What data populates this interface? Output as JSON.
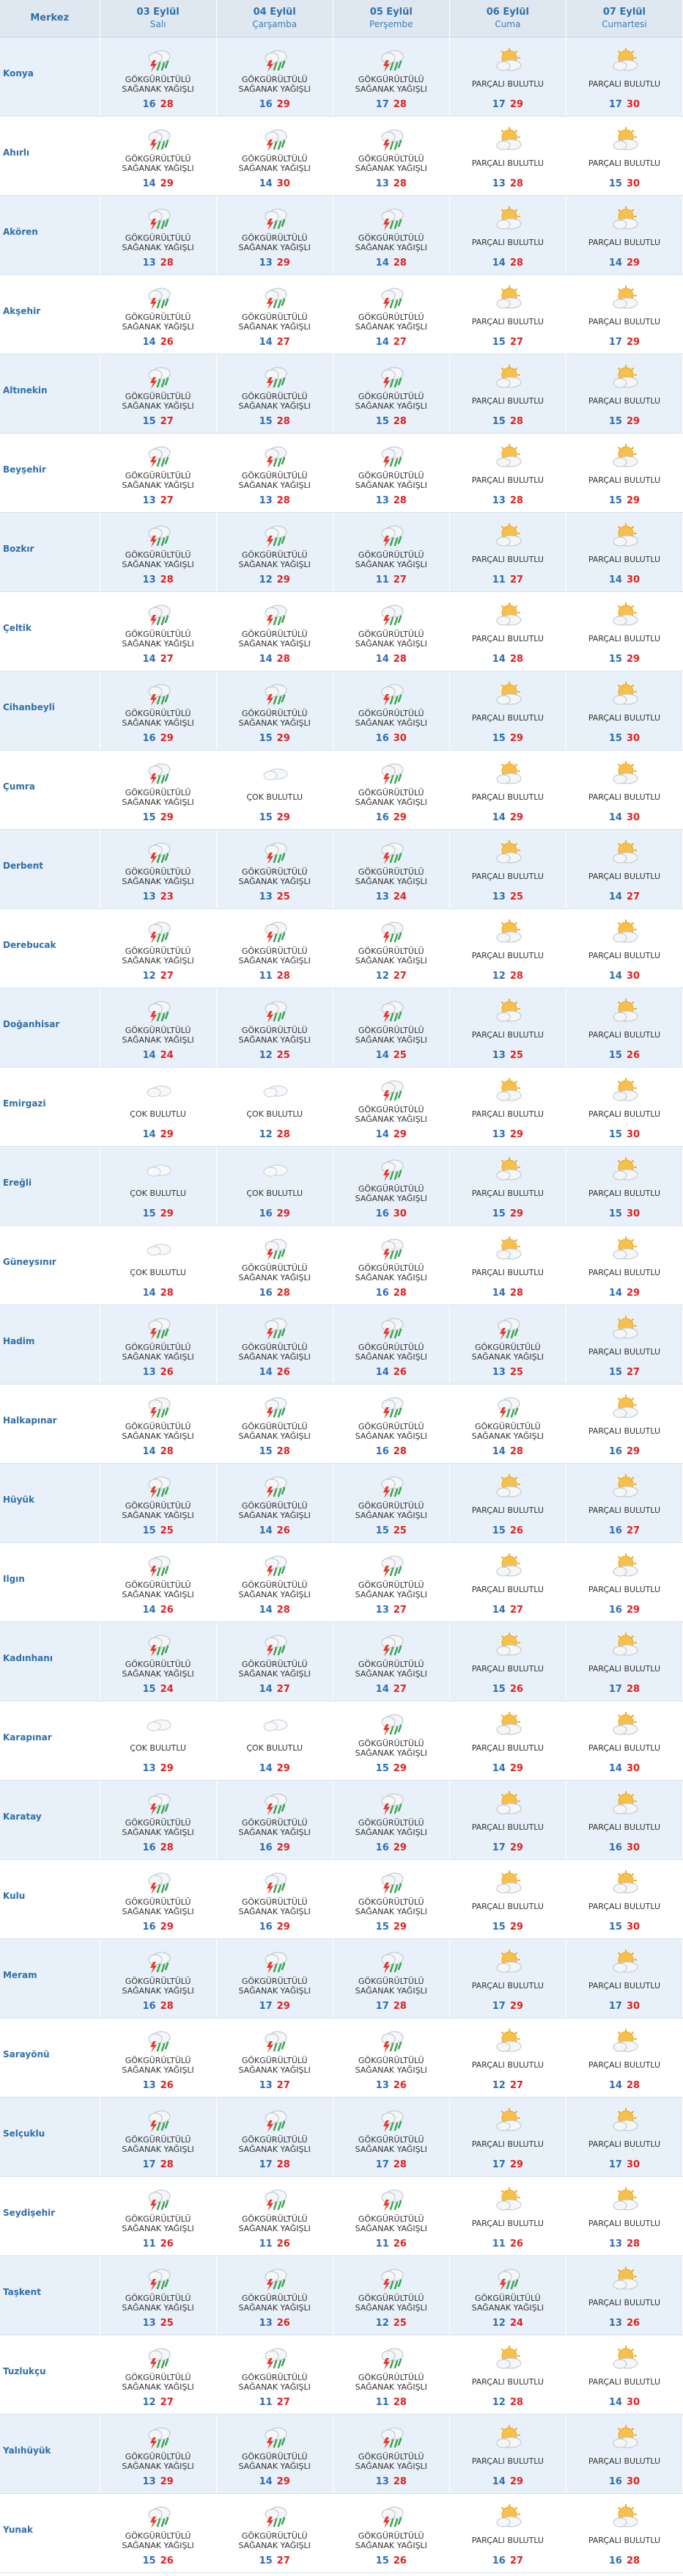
{
  "header": {
    "center_label": "Merkez",
    "days": [
      {
        "date": "03 Eylül",
        "name": "Salı"
      },
      {
        "date": "04 Eylül",
        "name": "Çarşamba"
      },
      {
        "date": "05 Eylül",
        "name": "Perşembe"
      },
      {
        "date": "06 Eylül",
        "name": "Cuma"
      },
      {
        "date": "07 Eylül",
        "name": "Cumartesi"
      }
    ]
  },
  "conditions": {
    "GSY": {
      "text": "GÖKGÜRÜLTÜLÜ\nSAĞANAK YAĞIŞLI",
      "icon": "thunderstorm-rain-icon"
    },
    "PB": {
      "text": "PARÇALI BULUTLU",
      "icon": "partly-cloudy-icon"
    },
    "CB": {
      "text": "ÇOK BULUTLU",
      "icon": "cloudy-icon"
    }
  },
  "colors": {
    "header_bg": "#dfe8f1",
    "row_alt_bg": "#e8f1f9",
    "city_text": "#2f6fa8",
    "min_temp": "#2e6db4",
    "max_temp": "#e02020"
  },
  "rows": [
    {
      "city": "Konya",
      "days": [
        [
          "GSY",
          16,
          28
        ],
        [
          "GSY",
          16,
          29
        ],
        [
          "GSY",
          17,
          28
        ],
        [
          "PB",
          17,
          29
        ],
        [
          "PB",
          17,
          30
        ]
      ]
    },
    {
      "city": "Ahırlı",
      "days": [
        [
          "GSY",
          14,
          29
        ],
        [
          "GSY",
          14,
          30
        ],
        [
          "GSY",
          13,
          28
        ],
        [
          "PB",
          13,
          28
        ],
        [
          "PB",
          15,
          30
        ]
      ]
    },
    {
      "city": "Akören",
      "days": [
        [
          "GSY",
          13,
          28
        ],
        [
          "GSY",
          13,
          29
        ],
        [
          "GSY",
          14,
          28
        ],
        [
          "PB",
          14,
          28
        ],
        [
          "PB",
          14,
          29
        ]
      ]
    },
    {
      "city": "Akşehir",
      "days": [
        [
          "GSY",
          14,
          26
        ],
        [
          "GSY",
          14,
          27
        ],
        [
          "GSY",
          14,
          27
        ],
        [
          "PB",
          15,
          27
        ],
        [
          "PB",
          17,
          29
        ]
      ]
    },
    {
      "city": "Altınekin",
      "days": [
        [
          "GSY",
          15,
          27
        ],
        [
          "GSY",
          15,
          28
        ],
        [
          "GSY",
          15,
          28
        ],
        [
          "PB",
          15,
          28
        ],
        [
          "PB",
          15,
          29
        ]
      ]
    },
    {
      "city": "Beyşehir",
      "days": [
        [
          "GSY",
          13,
          27
        ],
        [
          "GSY",
          13,
          28
        ],
        [
          "GSY",
          13,
          28
        ],
        [
          "PB",
          13,
          28
        ],
        [
          "PB",
          15,
          29
        ]
      ]
    },
    {
      "city": "Bozkır",
      "days": [
        [
          "GSY",
          13,
          28
        ],
        [
          "GSY",
          12,
          29
        ],
        [
          "GSY",
          11,
          27
        ],
        [
          "PB",
          11,
          27
        ],
        [
          "PB",
          14,
          30
        ]
      ]
    },
    {
      "city": "Çeltik",
      "days": [
        [
          "GSY",
          14,
          27
        ],
        [
          "GSY",
          14,
          28
        ],
        [
          "GSY",
          14,
          28
        ],
        [
          "PB",
          14,
          28
        ],
        [
          "PB",
          15,
          29
        ]
      ]
    },
    {
      "city": "Cihanbeyli",
      "days": [
        [
          "GSY",
          16,
          29
        ],
        [
          "GSY",
          15,
          29
        ],
        [
          "GSY",
          16,
          30
        ],
        [
          "PB",
          15,
          29
        ],
        [
          "PB",
          15,
          30
        ]
      ]
    },
    {
      "city": "Çumra",
      "days": [
        [
          "GSY",
          15,
          29
        ],
        [
          "CB",
          15,
          29
        ],
        [
          "GSY",
          16,
          29
        ],
        [
          "PB",
          14,
          29
        ],
        [
          "PB",
          14,
          30
        ]
      ]
    },
    {
      "city": "Derbent",
      "days": [
        [
          "GSY",
          13,
          23
        ],
        [
          "GSY",
          13,
          25
        ],
        [
          "GSY",
          13,
          24
        ],
        [
          "PB",
          13,
          25
        ],
        [
          "PB",
          14,
          27
        ]
      ]
    },
    {
      "city": "Derebucak",
      "days": [
        [
          "GSY",
          12,
          27
        ],
        [
          "GSY",
          11,
          28
        ],
        [
          "GSY",
          12,
          27
        ],
        [
          "PB",
          12,
          28
        ],
        [
          "PB",
          14,
          30
        ]
      ]
    },
    {
      "city": "Doğanhisar",
      "days": [
        [
          "GSY",
          14,
          24
        ],
        [
          "GSY",
          12,
          25
        ],
        [
          "GSY",
          14,
          25
        ],
        [
          "PB",
          13,
          25
        ],
        [
          "PB",
          15,
          26
        ]
      ]
    },
    {
      "city": "Emirgazi",
      "days": [
        [
          "CB",
          14,
          29
        ],
        [
          "CB",
          12,
          28
        ],
        [
          "GSY",
          14,
          29
        ],
        [
          "PB",
          13,
          29
        ],
        [
          "PB",
          15,
          30
        ]
      ]
    },
    {
      "city": "Ereğli",
      "days": [
        [
          "CB",
          15,
          29
        ],
        [
          "CB",
          16,
          29
        ],
        [
          "GSY",
          16,
          30
        ],
        [
          "PB",
          15,
          29
        ],
        [
          "PB",
          15,
          30
        ]
      ]
    },
    {
      "city": "Güneysınır",
      "days": [
        [
          "CB",
          14,
          28
        ],
        [
          "GSY",
          16,
          28
        ],
        [
          "GSY",
          16,
          28
        ],
        [
          "PB",
          14,
          28
        ],
        [
          "PB",
          14,
          29
        ]
      ]
    },
    {
      "city": "Hadim",
      "days": [
        [
          "GSY",
          13,
          26
        ],
        [
          "GSY",
          14,
          26
        ],
        [
          "GSY",
          14,
          26
        ],
        [
          "GSY",
          13,
          25
        ],
        [
          "PB",
          15,
          27
        ]
      ]
    },
    {
      "city": "Halkapınar",
      "days": [
        [
          "GSY",
          14,
          28
        ],
        [
          "GSY",
          15,
          28
        ],
        [
          "GSY",
          16,
          28
        ],
        [
          "GSY",
          14,
          28
        ],
        [
          "PB",
          16,
          29
        ]
      ]
    },
    {
      "city": "Hüyük",
      "days": [
        [
          "GSY",
          15,
          25
        ],
        [
          "GSY",
          14,
          26
        ],
        [
          "GSY",
          15,
          25
        ],
        [
          "PB",
          15,
          26
        ],
        [
          "PB",
          16,
          27
        ]
      ]
    },
    {
      "city": "Ilgın",
      "days": [
        [
          "GSY",
          14,
          26
        ],
        [
          "GSY",
          14,
          28
        ],
        [
          "GSY",
          13,
          27
        ],
        [
          "PB",
          14,
          27
        ],
        [
          "PB",
          16,
          29
        ]
      ]
    },
    {
      "city": "Kadınhanı",
      "days": [
        [
          "GSY",
          15,
          24
        ],
        [
          "GSY",
          14,
          27
        ],
        [
          "GSY",
          14,
          27
        ],
        [
          "PB",
          15,
          26
        ],
        [
          "PB",
          17,
          28
        ]
      ]
    },
    {
      "city": "Karapınar",
      "days": [
        [
          "CB",
          13,
          29
        ],
        [
          "CB",
          14,
          29
        ],
        [
          "GSY",
          15,
          29
        ],
        [
          "PB",
          14,
          29
        ],
        [
          "PB",
          14,
          30
        ]
      ]
    },
    {
      "city": "Karatay",
      "days": [
        [
          "GSY",
          16,
          28
        ],
        [
          "GSY",
          16,
          29
        ],
        [
          "GSY",
          16,
          29
        ],
        [
          "PB",
          17,
          29
        ],
        [
          "PB",
          16,
          30
        ]
      ]
    },
    {
      "city": "Kulu",
      "days": [
        [
          "GSY",
          16,
          29
        ],
        [
          "GSY",
          16,
          29
        ],
        [
          "GSY",
          15,
          29
        ],
        [
          "PB",
          15,
          29
        ],
        [
          "PB",
          15,
          30
        ]
      ]
    },
    {
      "city": "Meram",
      "days": [
        [
          "GSY",
          16,
          28
        ],
        [
          "GSY",
          17,
          29
        ],
        [
          "GSY",
          17,
          28
        ],
        [
          "PB",
          17,
          29
        ],
        [
          "PB",
          17,
          30
        ]
      ]
    },
    {
      "city": "Sarayönü",
      "days": [
        [
          "GSY",
          13,
          26
        ],
        [
          "GSY",
          13,
          27
        ],
        [
          "GSY",
          13,
          26
        ],
        [
          "PB",
          12,
          27
        ],
        [
          "PB",
          14,
          28
        ]
      ]
    },
    {
      "city": "Selçuklu",
      "days": [
        [
          "GSY",
          17,
          28
        ],
        [
          "GSY",
          17,
          28
        ],
        [
          "GSY",
          17,
          28
        ],
        [
          "PB",
          17,
          29
        ],
        [
          "PB",
          17,
          30
        ]
      ]
    },
    {
      "city": "Seydişehir",
      "days": [
        [
          "GSY",
          11,
          26
        ],
        [
          "GSY",
          11,
          26
        ],
        [
          "GSY",
          11,
          26
        ],
        [
          "PB",
          11,
          26
        ],
        [
          "PB",
          13,
          28
        ]
      ]
    },
    {
      "city": "Taşkent",
      "days": [
        [
          "GSY",
          13,
          25
        ],
        [
          "GSY",
          13,
          26
        ],
        [
          "GSY",
          12,
          25
        ],
        [
          "GSY",
          12,
          24
        ],
        [
          "PB",
          13,
          26
        ]
      ]
    },
    {
      "city": "Tuzlukçu",
      "days": [
        [
          "GSY",
          12,
          27
        ],
        [
          "GSY",
          11,
          27
        ],
        [
          "GSY",
          11,
          28
        ],
        [
          "PB",
          12,
          28
        ],
        [
          "PB",
          14,
          30
        ]
      ]
    },
    {
      "city": "Yalıhüyük",
      "days": [
        [
          "GSY",
          13,
          29
        ],
        [
          "GSY",
          14,
          29
        ],
        [
          "GSY",
          13,
          28
        ],
        [
          "PB",
          14,
          29
        ],
        [
          "PB",
          16,
          30
        ]
      ]
    },
    {
      "city": "Yunak",
      "days": [
        [
          "GSY",
          15,
          26
        ],
        [
          "GSY",
          15,
          27
        ],
        [
          "GSY",
          15,
          26
        ],
        [
          "PB",
          16,
          27
        ],
        [
          "PB",
          16,
          28
        ]
      ]
    }
  ]
}
